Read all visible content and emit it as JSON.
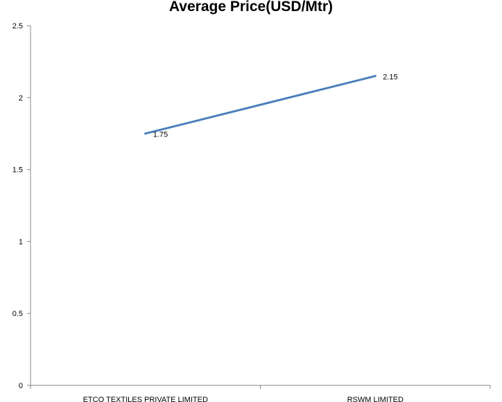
{
  "chart_data": {
    "type": "line",
    "title": "Average Price(USD/Mtr)",
    "xlabel": "",
    "ylabel": "",
    "categories": [
      "ETCO TEXTILES  PRIVATE  LIMITED",
      "RSWM LIMITED"
    ],
    "series": [
      {
        "values": [
          1.75,
          2.15
        ],
        "color": "#4a7ebb",
        "data_labels": [
          "1.75",
          "2.15"
        ]
      }
    ],
    "ylim": [
      0,
      2.5
    ],
    "yticks": [
      0,
      0.5,
      1,
      1.5,
      2,
      2.5
    ],
    "ytick_labels": [
      "0",
      "0.5",
      "1",
      "1.5",
      "2",
      "2.5"
    ],
    "grid": false,
    "legend": "none"
  }
}
